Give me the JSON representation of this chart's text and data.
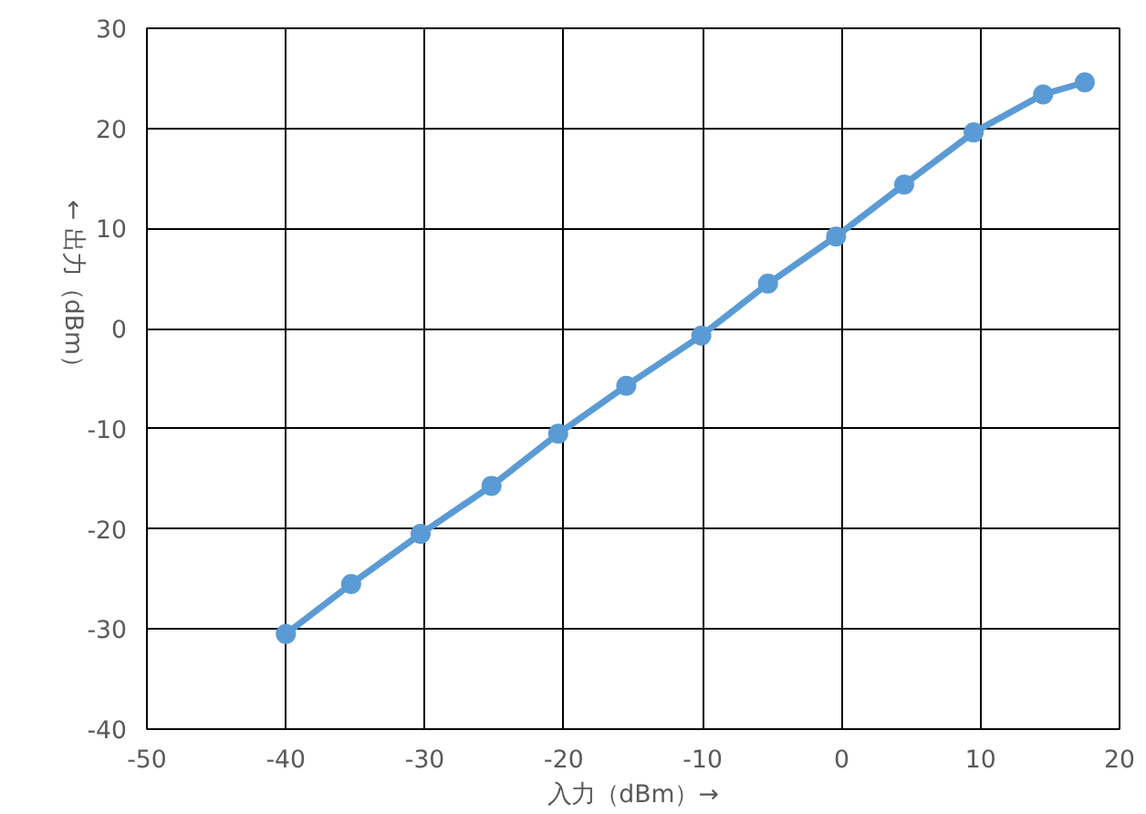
{
  "chart_data": {
    "type": "line",
    "xlabel": "入力（dBm）→",
    "ylabel": "← 出力（dBm）",
    "x": [
      -40,
      -35.3,
      -30.3,
      -25.2,
      -20.4,
      -15.5,
      -10.1,
      -5.3,
      -0.4,
      4.5,
      9.5,
      14.5,
      17.5
    ],
    "series": [
      {
        "color": "#5b9bd5",
        "values": [
          -30.5,
          -25.5,
          -20.5,
          -15.7,
          -10.5,
          -5.7,
          -0.7,
          4.5,
          9.2,
          14.4,
          19.6,
          23.4,
          24.6
        ]
      }
    ],
    "xlim": [
      -50,
      20
    ],
    "xticks": [
      -50,
      -40,
      -30,
      -20,
      -10,
      0,
      10,
      20
    ],
    "ylim": [
      -40,
      30
    ],
    "yticks": [
      -40,
      -30,
      -20,
      -10,
      0,
      10,
      20,
      30
    ],
    "grid": true,
    "marker": "circle",
    "line_style": "solid"
  }
}
